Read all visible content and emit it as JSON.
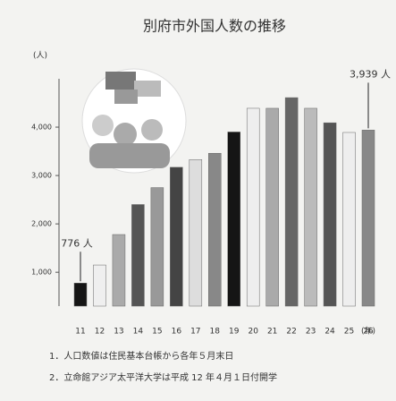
{
  "chart_data": {
    "type": "bar",
    "title": "別府市外国人数の推移",
    "y_label": "(人)",
    "x_label": "(年)",
    "categories": [
      "11",
      "12",
      "13",
      "14",
      "15",
      "16",
      "17",
      "18",
      "19",
      "20",
      "21",
      "22",
      "23",
      "24",
      "25",
      "26"
    ],
    "values": [
      776,
      1150,
      1780,
      2400,
      2750,
      3170,
      3330,
      3460,
      3900,
      4390,
      4390,
      4610,
      4390,
      4090,
      3890,
      3939
    ],
    "value_labels": [
      "776 人",
      null,
      null,
      null,
      null,
      null,
      null,
      null,
      null,
      null,
      null,
      null,
      null,
      null,
      null,
      "3,939 人"
    ],
    "colors": [
      "#151515",
      "#efefef",
      "#aaaaaa",
      "#555555",
      "#999999",
      "#444444",
      "#dddddd",
      "#888888",
      "#151515",
      "#eeeeee",
      "#aaaaaa",
      "#666666",
      "#bbbbbb",
      "#555555",
      "#eeeeee",
      "#888888"
    ],
    "ylim": [
      300,
      5000
    ],
    "yticks": [
      {
        "value": 1000,
        "label": "1,000"
      },
      {
        "value": 2000,
        "label": "2,000"
      },
      {
        "value": 3000,
        "label": "3,000"
      },
      {
        "value": 4000,
        "label": "4,000"
      }
    ],
    "notes": [
      "1．人口数値は住民基本台帳から各年５月末日",
      "2．立命館アジア太平洋大学は平成 12 年４月１日付開学"
    ]
  }
}
